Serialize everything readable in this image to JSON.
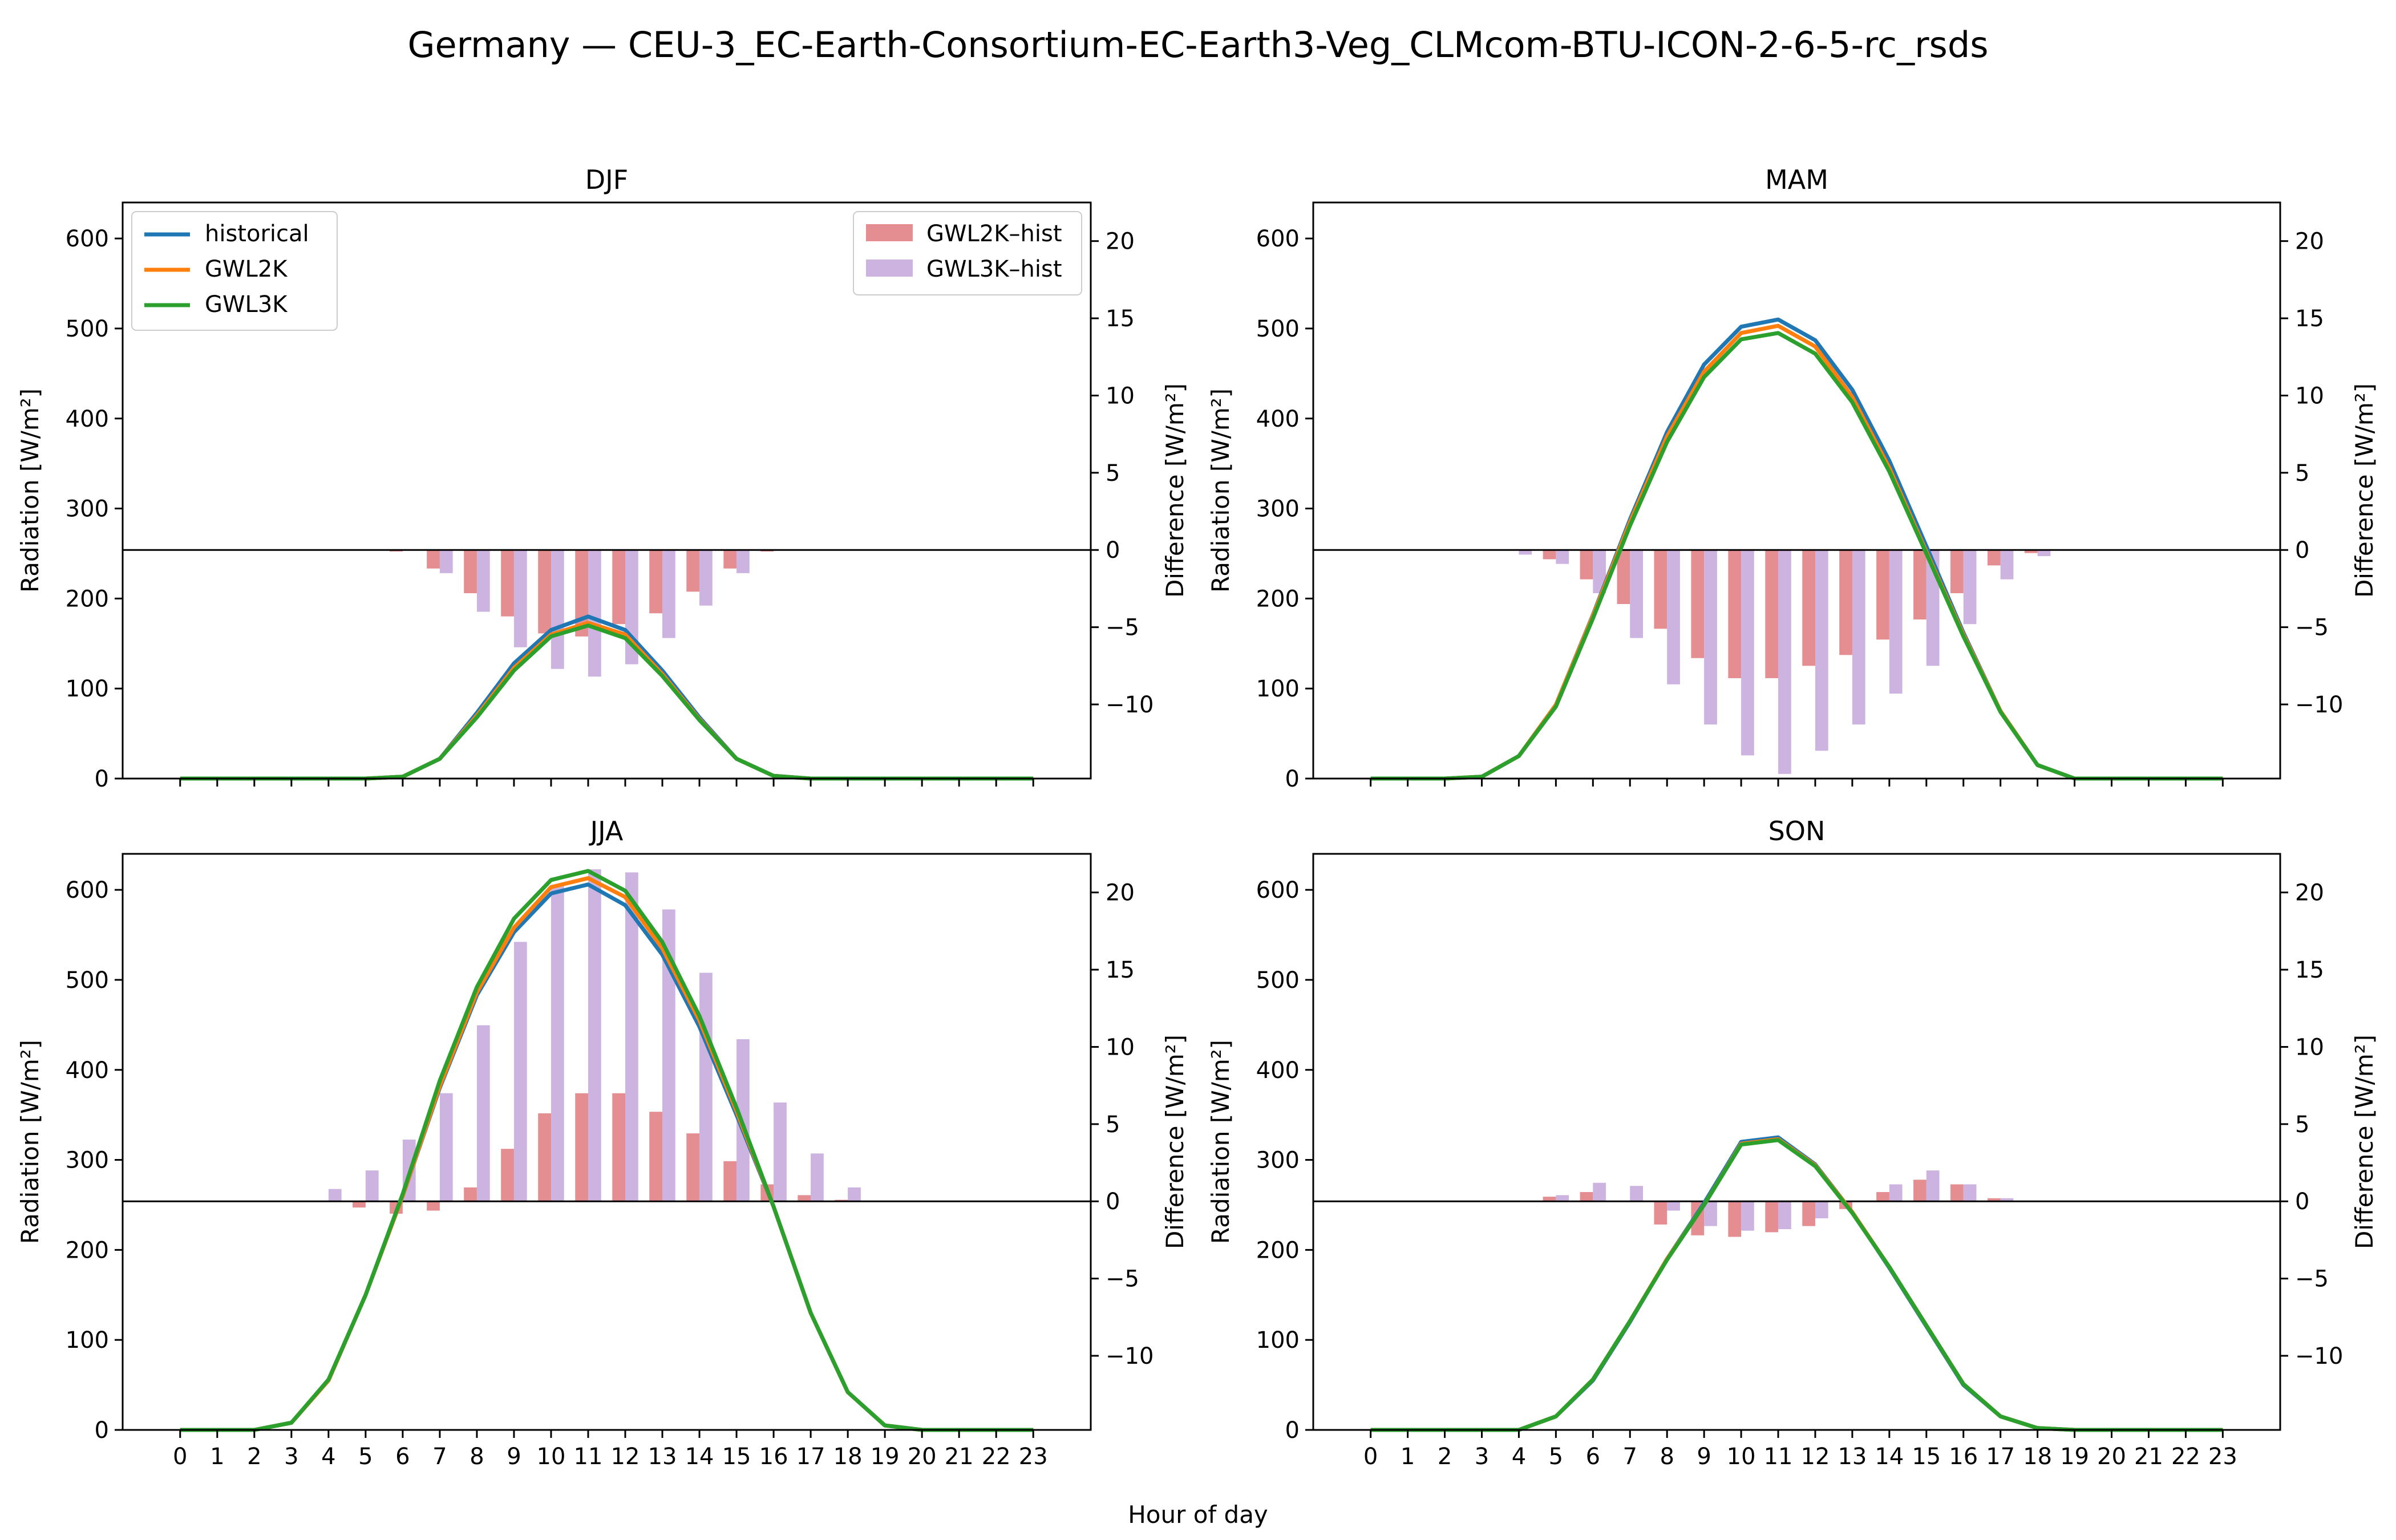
{
  "figure": {
    "title": "Germany — CEU-3_EC-Earth-Consortium-EC-Earth3-Veg_CLMcom-BTU-ICON-2-6-5-rc_rsds",
    "xlabel": "Hour of day"
  },
  "legend_left": {
    "entries": [
      {
        "label": "historical",
        "color": "#1f77b4"
      },
      {
        "label": "GWL2K",
        "color": "#ff7f0e"
      },
      {
        "label": "GWL3K",
        "color": "#2ca02c"
      }
    ]
  },
  "legend_right": {
    "entries": [
      {
        "label": "GWL2K–hist",
        "color": "#e07a7e"
      },
      {
        "label": "GWL3K–hist",
        "color": "#c3a6db"
      }
    ]
  },
  "chart_data": [
    {
      "type": "line",
      "title": "DJF",
      "xlabel": "Hour of day",
      "ylabel": "Radiation [W/m²]",
      "y2label": "Difference [W/m²]",
      "x": [
        0,
        1,
        2,
        3,
        4,
        5,
        6,
        7,
        8,
        9,
        10,
        11,
        12,
        13,
        14,
        15,
        16,
        17,
        18,
        19,
        20,
        21,
        22,
        23
      ],
      "ylim": [
        0,
        640
      ],
      "y2lim": [
        -14.8,
        22.5
      ],
      "yticks": [
        0,
        100,
        200,
        300,
        400,
        500,
        600
      ],
      "y2ticks": [
        -10,
        -5,
        0,
        5,
        10,
        15,
        20
      ],
      "grid": false,
      "legend": "lines upper-left, bars upper-right",
      "series": [
        {
          "name": "historical",
          "color": "#1f77b4",
          "values": [
            0,
            0,
            0,
            0,
            0,
            0,
            2,
            22,
            73,
            128,
            165,
            180,
            165,
            120,
            68,
            22,
            3,
            0,
            0,
            0,
            0,
            0,
            0,
            0
          ]
        },
        {
          "name": "GWL2K",
          "color": "#ff7f0e",
          "values": [
            0,
            0,
            0,
            0,
            0,
            0,
            2,
            22,
            70,
            123,
            160,
            173,
            160,
            116,
            66,
            22,
            3,
            0,
            0,
            0,
            0,
            0,
            0,
            0
          ]
        },
        {
          "name": "GWL3K",
          "color": "#2ca02c",
          "values": [
            0,
            0,
            0,
            0,
            0,
            0,
            2,
            22,
            68,
            120,
            158,
            170,
            156,
            114,
            65,
            22,
            3,
            0,
            0,
            0,
            0,
            0,
            0,
            0
          ]
        }
      ],
      "bar_series": [
        {
          "name": "GWL2K–hist",
          "color": "#e07a7e",
          "values": [
            0,
            0,
            0,
            0,
            0,
            0,
            -0.1,
            -1.2,
            -2.8,
            -4.3,
            -5.4,
            -5.6,
            -4.8,
            -4.1,
            -2.7,
            -1.2,
            -0.1,
            0,
            0,
            0,
            0,
            0,
            0,
            0
          ]
        },
        {
          "name": "GWL3K–hist",
          "color": "#c3a6db",
          "values": [
            0,
            0,
            0,
            0,
            0,
            0,
            0,
            -1.5,
            -4.0,
            -6.3,
            -7.7,
            -8.2,
            -7.4,
            -5.7,
            -3.6,
            -1.5,
            0,
            0,
            0,
            0,
            0,
            0,
            0,
            0
          ]
        }
      ]
    },
    {
      "type": "line",
      "title": "MAM",
      "xlabel": "Hour of day",
      "ylabel": "Radiation [W/m²]",
      "y2label": "Difference [W/m²]",
      "x": [
        0,
        1,
        2,
        3,
        4,
        5,
        6,
        7,
        8,
        9,
        10,
        11,
        12,
        13,
        14,
        15,
        16,
        17,
        18,
        19,
        20,
        21,
        22,
        23
      ],
      "ylim": [
        0,
        640
      ],
      "y2lim": [
        -14.8,
        22.5
      ],
      "yticks": [
        0,
        100,
        200,
        300,
        400,
        500,
        600
      ],
      "y2ticks": [
        -10,
        -5,
        0,
        5,
        10,
        15,
        20
      ],
      "grid": false,
      "legend": "",
      "series": [
        {
          "name": "historical",
          "color": "#1f77b4",
          "values": [
            0,
            0,
            0,
            2,
            25,
            82,
            182,
            288,
            385,
            460,
            502,
            510,
            487,
            432,
            353,
            258,
            162,
            75,
            15,
            0,
            0,
            0,
            0,
            0
          ]
        },
        {
          "name": "GWL2K",
          "color": "#ff7f0e",
          "values": [
            0,
            0,
            0,
            2,
            25,
            82,
            181,
            285,
            380,
            452,
            495,
            503,
            480,
            424,
            345,
            252,
            160,
            75,
            15,
            0,
            0,
            0,
            0,
            0
          ]
        },
        {
          "name": "GWL3K",
          "color": "#2ca02c",
          "values": [
            0,
            0,
            0,
            2,
            25,
            80,
            178,
            281,
            374,
            446,
            488,
            495,
            472,
            418,
            341,
            250,
            158,
            74,
            15,
            0,
            0,
            0,
            0,
            0
          ]
        }
      ],
      "bar_series": [
        {
          "name": "GWL2K–hist",
          "color": "#e07a7e",
          "values": [
            0,
            0,
            0,
            0,
            0,
            -0.6,
            -1.9,
            -3.5,
            -5.1,
            -7.0,
            -8.3,
            -8.3,
            -7.5,
            -6.8,
            -5.8,
            -4.5,
            -2.8,
            -1.0,
            -0.2,
            0,
            0,
            0,
            0,
            0
          ]
        },
        {
          "name": "GWL3K–hist",
          "color": "#c3a6db",
          "values": [
            0,
            0,
            0,
            0,
            -0.3,
            -0.9,
            -2.8,
            -5.7,
            -8.7,
            -11.3,
            -13.3,
            -14.5,
            -13.0,
            -11.3,
            -9.3,
            -7.5,
            -4.8,
            -1.9,
            -0.4,
            0,
            0,
            0,
            0,
            0
          ]
        }
      ]
    },
    {
      "type": "line",
      "title": "JJA",
      "xlabel": "Hour of day",
      "ylabel": "Radiation [W/m²]",
      "y2label": "Difference [W/m²]",
      "x": [
        0,
        1,
        2,
        3,
        4,
        5,
        6,
        7,
        8,
        9,
        10,
        11,
        12,
        13,
        14,
        15,
        16,
        17,
        18,
        19,
        20,
        21,
        22,
        23
      ],
      "ylim": [
        0,
        640
      ],
      "y2lim": [
        -14.8,
        22.5
      ],
      "yticks": [
        0,
        100,
        200,
        300,
        400,
        500,
        600
      ],
      "y2ticks": [
        -10,
        -5,
        0,
        5,
        10,
        15,
        20
      ],
      "grid": false,
      "legend": "",
      "series": [
        {
          "name": "historical",
          "color": "#1f77b4",
          "values": [
            0,
            0,
            0,
            8,
            55,
            150,
            260,
            380,
            483,
            553,
            596,
            606,
            583,
            528,
            448,
            350,
            248,
            130,
            42,
            5,
            0,
            0,
            0,
            0
          ]
        },
        {
          "name": "GWL2K",
          "color": "#ff7f0e",
          "values": [
            0,
            0,
            0,
            8,
            55,
            150,
            260,
            382,
            486,
            558,
            603,
            613,
            592,
            535,
            455,
            354,
            248,
            130,
            42,
            5,
            0,
            0,
            0,
            0
          ]
        },
        {
          "name": "GWL3K",
          "color": "#2ca02c",
          "values": [
            0,
            0,
            0,
            8,
            56,
            150,
            262,
            388,
            492,
            568,
            611,
            621,
            599,
            542,
            460,
            358,
            248,
            130,
            42,
            5,
            0,
            0,
            0,
            0
          ]
        }
      ],
      "bar_series": [
        {
          "name": "GWL2K–hist",
          "color": "#e07a7e",
          "values": [
            0,
            0,
            0,
            0,
            0,
            -0.4,
            -0.8,
            -0.6,
            0.9,
            3.4,
            5.7,
            7.0,
            7.0,
            5.8,
            4.4,
            2.6,
            1.1,
            0.4,
            0.1,
            0,
            0,
            0,
            0,
            0
          ]
        },
        {
          "name": "GWL3K–hist",
          "color": "#c3a6db",
          "values": [
            0,
            0,
            0,
            0,
            0.8,
            2.0,
            4.0,
            7.0,
            11.4,
            16.8,
            20.5,
            21.5,
            21.3,
            18.9,
            14.8,
            10.5,
            6.4,
            3.1,
            0.9,
            0,
            0,
            0,
            0,
            0
          ]
        }
      ]
    },
    {
      "type": "line",
      "title": "SON",
      "xlabel": "Hour of day",
      "ylabel": "Radiation [W/m²]",
      "y2label": "Difference [W/m²]",
      "x": [
        0,
        1,
        2,
        3,
        4,
        5,
        6,
        7,
        8,
        9,
        10,
        11,
        12,
        13,
        14,
        15,
        16,
        17,
        18,
        19,
        20,
        21,
        22,
        23
      ],
      "ylim": [
        0,
        640
      ],
      "y2lim": [
        -14.8,
        22.5
      ],
      "yticks": [
        0,
        100,
        200,
        300,
        400,
        500,
        600
      ],
      "y2ticks": [
        -10,
        -5,
        0,
        5,
        10,
        15,
        20
      ],
      "grid": false,
      "legend": "",
      "series": [
        {
          "name": "historical",
          "color": "#1f77b4",
          "values": [
            0,
            0,
            0,
            0,
            0,
            15,
            55,
            120,
            190,
            252,
            320,
            325,
            295,
            242,
            180,
            115,
            50,
            15,
            2,
            0,
            0,
            0,
            0,
            0
          ]
        },
        {
          "name": "GWL2K",
          "color": "#ff7f0e",
          "values": [
            0,
            0,
            0,
            0,
            0,
            15,
            56,
            121,
            190,
            250,
            318,
            323,
            294,
            242,
            181,
            116,
            51,
            15,
            2,
            0,
            0,
            0,
            0,
            0
          ]
        },
        {
          "name": "GWL3K",
          "color": "#2ca02c",
          "values": [
            0,
            0,
            0,
            0,
            0,
            15,
            56,
            121,
            189,
            250,
            317,
            322,
            293,
            241,
            181,
            116,
            51,
            15,
            2,
            0,
            0,
            0,
            0,
            0
          ]
        }
      ],
      "bar_series": [
        {
          "name": "GWL2K–hist",
          "color": "#e07a7e",
          "values": [
            0,
            0,
            0,
            0,
            0,
            0.3,
            0.6,
            0,
            -1.5,
            -2.2,
            -2.3,
            -2.0,
            -1.6,
            -0.5,
            0.6,
            1.4,
            1.1,
            0.2,
            0,
            0,
            0,
            0,
            0,
            0
          ]
        },
        {
          "name": "GWL3K–hist",
          "color": "#c3a6db",
          "values": [
            0,
            0,
            0,
            0,
            0,
            0.4,
            1.2,
            1.0,
            -0.6,
            -1.6,
            -1.9,
            -1.8,
            -1.1,
            0,
            1.1,
            2.0,
            1.1,
            0.2,
            0,
            0,
            0,
            0,
            0,
            0
          ]
        }
      ]
    }
  ]
}
